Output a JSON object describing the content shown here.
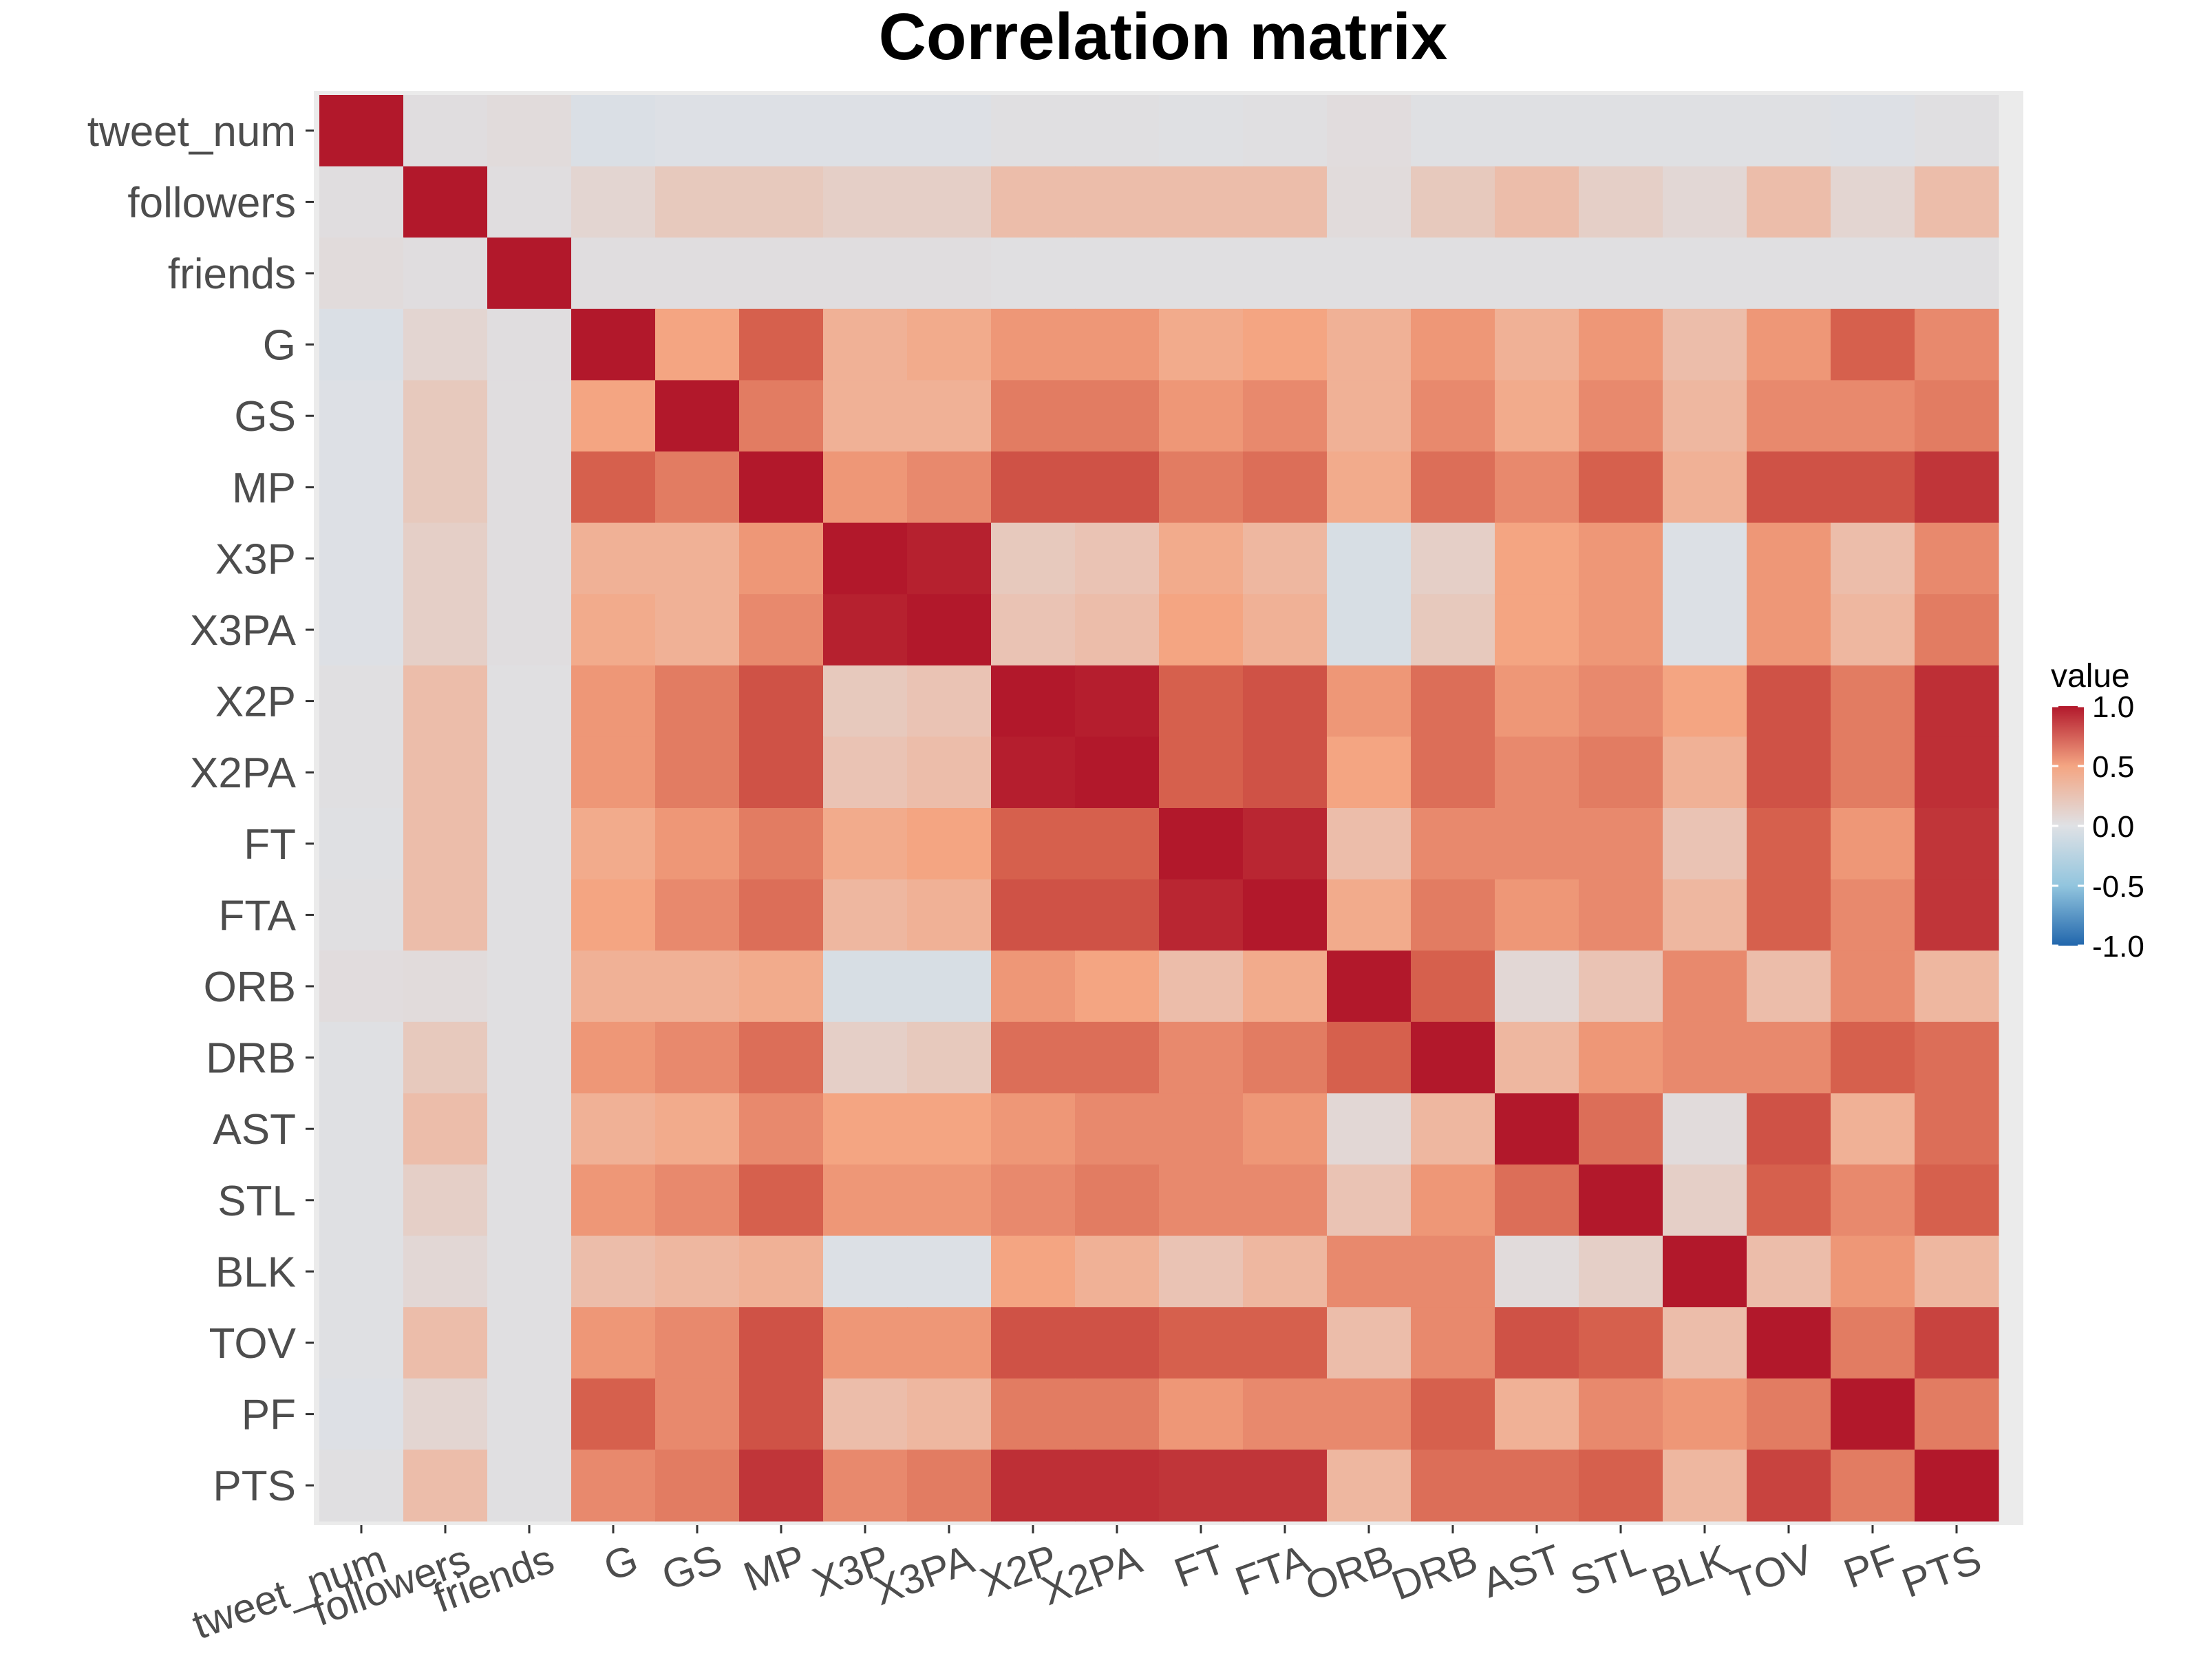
{
  "chart_data": {
    "type": "heatmap",
    "title": "Correlation matrix",
    "xlabel": "",
    "ylabel": "",
    "variables": [
      "tweet_num",
      "followers",
      "friends",
      "G",
      "GS",
      "MP",
      "X3P",
      "X3PA",
      "X2P",
      "X2PA",
      "FT",
      "FTA",
      "ORB",
      "DRB",
      "AST",
      "STL",
      "BLK",
      "TOV",
      "PF",
      "PTS"
    ],
    "matrix": [
      [
        1.0,
        0.03,
        0.05,
        -0.03,
        -0.01,
        -0.01,
        -0.01,
        -0.01,
        0.02,
        0.02,
        0.01,
        0.02,
        0.04,
        0.01,
        0.01,
        0.01,
        0.01,
        0.01,
        -0.01,
        0.02
      ],
      [
        0.03,
        1.0,
        0.03,
        0.1,
        0.2,
        0.2,
        0.15,
        0.15,
        0.3,
        0.3,
        0.3,
        0.3,
        0.05,
        0.2,
        0.3,
        0.15,
        0.08,
        0.3,
        0.1,
        0.3
      ],
      [
        0.05,
        0.03,
        1.0,
        0.03,
        0.03,
        0.03,
        0.03,
        0.03,
        0.02,
        0.02,
        0.02,
        0.02,
        0.02,
        0.02,
        0.02,
        0.02,
        0.02,
        0.02,
        0.02,
        0.02
      ],
      [
        -0.03,
        0.1,
        0.03,
        1.0,
        0.5,
        0.75,
        0.4,
        0.45,
        0.55,
        0.55,
        0.45,
        0.5,
        0.4,
        0.55,
        0.4,
        0.55,
        0.3,
        0.55,
        0.75,
        0.6
      ],
      [
        -0.01,
        0.2,
        0.03,
        0.5,
        1.0,
        0.65,
        0.4,
        0.4,
        0.65,
        0.65,
        0.55,
        0.6,
        0.4,
        0.6,
        0.45,
        0.6,
        0.35,
        0.6,
        0.6,
        0.65
      ],
      [
        -0.01,
        0.2,
        0.03,
        0.75,
        0.65,
        1.0,
        0.55,
        0.6,
        0.8,
        0.8,
        0.65,
        0.7,
        0.45,
        0.7,
        0.6,
        0.75,
        0.4,
        0.8,
        0.8,
        0.9
      ],
      [
        -0.01,
        0.15,
        0.03,
        0.4,
        0.4,
        0.55,
        1.0,
        0.97,
        0.2,
        0.25,
        0.45,
        0.35,
        -0.05,
        0.15,
        0.5,
        0.55,
        -0.02,
        0.55,
        0.3,
        0.6
      ],
      [
        -0.01,
        0.15,
        0.03,
        0.45,
        0.4,
        0.6,
        0.97,
        1.0,
        0.25,
        0.3,
        0.5,
        0.4,
        -0.05,
        0.2,
        0.5,
        0.55,
        -0.02,
        0.55,
        0.35,
        0.65
      ],
      [
        0.02,
        0.3,
        0.02,
        0.55,
        0.65,
        0.8,
        0.2,
        0.25,
        1.0,
        0.98,
        0.75,
        0.8,
        0.55,
        0.7,
        0.55,
        0.6,
        0.5,
        0.8,
        0.65,
        0.92
      ],
      [
        0.02,
        0.3,
        0.02,
        0.55,
        0.65,
        0.8,
        0.25,
        0.3,
        0.98,
        1.0,
        0.75,
        0.8,
        0.5,
        0.7,
        0.6,
        0.65,
        0.4,
        0.8,
        0.65,
        0.92
      ],
      [
        0.01,
        0.3,
        0.02,
        0.45,
        0.55,
        0.65,
        0.45,
        0.5,
        0.75,
        0.75,
        1.0,
        0.95,
        0.3,
        0.6,
        0.6,
        0.6,
        0.25,
        0.75,
        0.55,
        0.9
      ],
      [
        0.02,
        0.3,
        0.02,
        0.5,
        0.6,
        0.7,
        0.35,
        0.4,
        0.8,
        0.8,
        0.95,
        1.0,
        0.45,
        0.65,
        0.55,
        0.6,
        0.35,
        0.75,
        0.6,
        0.9
      ],
      [
        0.04,
        0.05,
        0.02,
        0.4,
        0.4,
        0.45,
        -0.05,
        -0.05,
        0.55,
        0.5,
        0.3,
        0.45,
        1.0,
        0.75,
        0.08,
        0.25,
        0.6,
        0.3,
        0.6,
        0.35
      ],
      [
        0.01,
        0.2,
        0.02,
        0.55,
        0.6,
        0.7,
        0.15,
        0.2,
        0.7,
        0.7,
        0.6,
        0.65,
        0.75,
        1.0,
        0.35,
        0.55,
        0.6,
        0.6,
        0.75,
        0.7
      ],
      [
        0.01,
        0.3,
        0.02,
        0.4,
        0.45,
        0.6,
        0.5,
        0.5,
        0.55,
        0.6,
        0.6,
        0.55,
        0.08,
        0.35,
        1.0,
        0.7,
        0.05,
        0.8,
        0.4,
        0.7
      ],
      [
        0.01,
        0.15,
        0.02,
        0.55,
        0.6,
        0.75,
        0.55,
        0.55,
        0.6,
        0.65,
        0.6,
        0.6,
        0.25,
        0.55,
        0.7,
        1.0,
        0.15,
        0.75,
        0.6,
        0.75
      ],
      [
        0.01,
        0.08,
        0.02,
        0.3,
        0.35,
        0.4,
        -0.02,
        -0.02,
        0.5,
        0.4,
        0.25,
        0.35,
        0.6,
        0.6,
        0.05,
        0.15,
        1.0,
        0.3,
        0.55,
        0.35
      ],
      [
        0.01,
        0.3,
        0.02,
        0.55,
        0.6,
        0.8,
        0.55,
        0.55,
        0.8,
        0.8,
        0.75,
        0.75,
        0.3,
        0.6,
        0.8,
        0.75,
        0.3,
        1.0,
        0.65,
        0.85
      ],
      [
        -0.01,
        0.1,
        0.02,
        0.75,
        0.6,
        0.8,
        0.3,
        0.35,
        0.65,
        0.65,
        0.55,
        0.6,
        0.6,
        0.75,
        0.4,
        0.6,
        0.55,
        0.65,
        1.0,
        0.65
      ],
      [
        0.02,
        0.3,
        0.02,
        0.6,
        0.65,
        0.9,
        0.6,
        0.65,
        0.92,
        0.92,
        0.9,
        0.9,
        0.35,
        0.7,
        0.7,
        0.75,
        0.35,
        0.85,
        0.65,
        1.0
      ]
    ],
    "legend": {
      "title": "value",
      "ticks": [
        "1.0",
        "0.5",
        "0.0",
        "-0.5",
        "-1.0"
      ],
      "range": [
        -1,
        1
      ],
      "placement": "right"
    },
    "colors": {
      "low": "#2166ac",
      "mid": "#dfe1e5",
      "high": "#b2182b",
      "panel_background": "#ebebeb",
      "tick_text": "#4d4d4d"
    },
    "grid": false
  }
}
